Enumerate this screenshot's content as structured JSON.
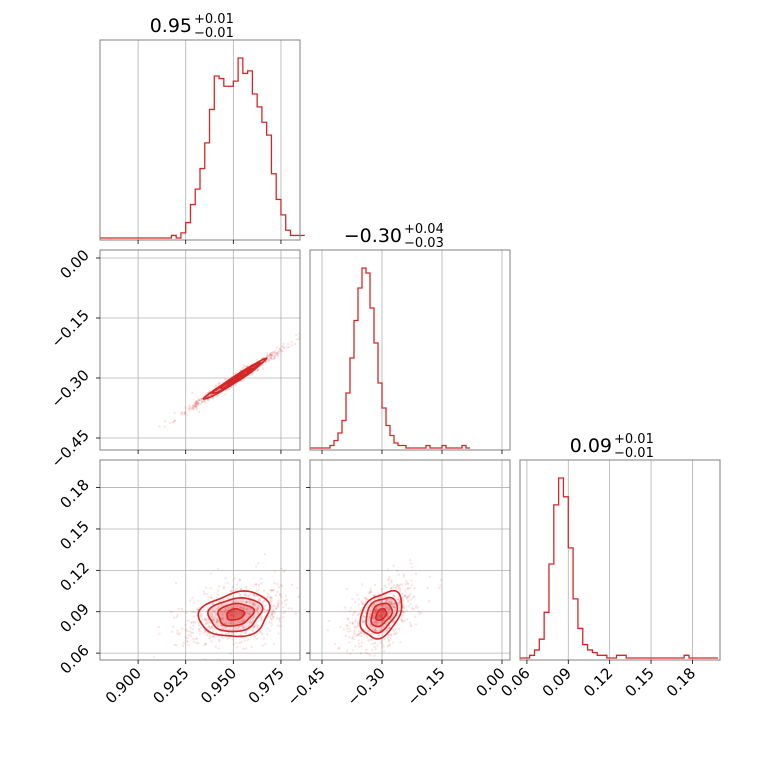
{
  "colors": {
    "series": "#d62728",
    "grid": "#b0b0b0",
    "spine": "#808080",
    "background": "#ffffff"
  },
  "chart_data": {
    "type": "corner",
    "parameters": 3,
    "titles": [
      {
        "value": "0.95",
        "plus": "+0.01",
        "minus": "−0.01"
      },
      {
        "value": "−0.30",
        "plus": "+0.04",
        "minus": "−0.03"
      },
      {
        "value": "0.09",
        "plus": "+0.01",
        "minus": "−0.01"
      }
    ],
    "axes": [
      {
        "range": [
          0.88,
          0.985
        ],
        "ticks": [
          0.9,
          0.925,
          0.95,
          0.975
        ],
        "tick_labels": [
          "0.900",
          "0.925",
          "0.950",
          "0.975"
        ]
      },
      {
        "range": [
          -0.48,
          0.02
        ],
        "ticks": [
          -0.45,
          -0.3,
          -0.15,
          0.0
        ],
        "tick_labels": [
          "−0.45",
          "−0.30",
          "−0.15",
          "0.00"
        ]
      },
      {
        "range": [
          0.055,
          0.2
        ],
        "ticks": [
          0.06,
          0.09,
          0.12,
          0.15,
          0.18
        ],
        "tick_labels": [
          "0.06",
          "0.09",
          "0.12",
          "0.15",
          "0.18"
        ]
      }
    ],
    "histograms": [
      {
        "param": 0,
        "bin_start": 0.88,
        "bin_width": 0.0025,
        "counts": [
          0,
          0,
          0,
          0,
          0,
          0,
          0,
          0,
          0,
          0,
          0,
          0,
          0,
          0,
          0,
          1,
          0,
          2,
          6,
          13,
          19,
          27,
          37,
          50,
          63,
          62,
          59,
          59,
          61,
          70,
          64,
          65,
          56,
          51,
          45,
          40,
          25,
          15,
          9,
          3,
          1,
          1,
          1
        ]
      },
      {
        "param": 1,
        "bin_start": -0.48,
        "bin_width": 0.01,
        "counts": [
          0,
          0,
          0,
          0,
          0,
          1,
          3,
          6,
          11,
          22,
          36,
          51,
          64,
          72,
          70,
          56,
          42,
          26,
          16,
          9,
          5,
          2,
          1,
          1,
          0,
          0,
          0,
          0,
          0,
          1,
          0,
          0,
          0,
          1,
          0,
          0,
          0,
          0,
          1,
          0
        ]
      },
      {
        "param": 2,
        "bin_start": 0.055,
        "bin_width": 0.0035,
        "counts": [
          0,
          0,
          1,
          3,
          7,
          17,
          35,
          57,
          67,
          60,
          41,
          22,
          11,
          5,
          3,
          2,
          1,
          1,
          0,
          0,
          1,
          1,
          0,
          0,
          0,
          0,
          0,
          0,
          0,
          0,
          0,
          0,
          0,
          0,
          1,
          0,
          0,
          0,
          0,
          0,
          0
        ]
      }
    ],
    "pair_plots": [
      {
        "x_param": 0,
        "y_param": 1,
        "center": [
          0.951,
          -0.303
        ],
        "sd": [
          0.008,
          0.025
        ],
        "corr": 0.99,
        "contours": [
          {
            "sigma": 0.5,
            "fill": 0.5
          },
          {
            "sigma": 1.0,
            "fill": 0.3
          },
          {
            "sigma": 1.5,
            "fill": 0.15
          },
          {
            "sigma": 2.0,
            "fill": 0.0
          }
        ]
      },
      {
        "x_param": 0,
        "y_param": 2,
        "center": [
          0.951,
          0.088
        ],
        "sd": [
          0.009,
          0.007
        ],
        "corr": 0.35,
        "contours": [
          {
            "sigma": 0.5,
            "fill": 0.5
          },
          {
            "sigma": 1.0,
            "fill": 0.3
          },
          {
            "sigma": 1.5,
            "fill": 0.15
          },
          {
            "sigma": 2.0,
            "fill": 0.0
          }
        ]
      },
      {
        "x_param": 1,
        "y_param": 2,
        "center": [
          -0.302,
          0.088
        ],
        "sd": [
          0.026,
          0.007
        ],
        "corr": 0.45,
        "contours": [
          {
            "sigma": 0.5,
            "fill": 0.5
          },
          {
            "sigma": 1.0,
            "fill": 0.3
          },
          {
            "sigma": 1.5,
            "fill": 0.15
          },
          {
            "sigma": 2.0,
            "fill": 0.0
          }
        ]
      }
    ],
    "grid": true
  }
}
